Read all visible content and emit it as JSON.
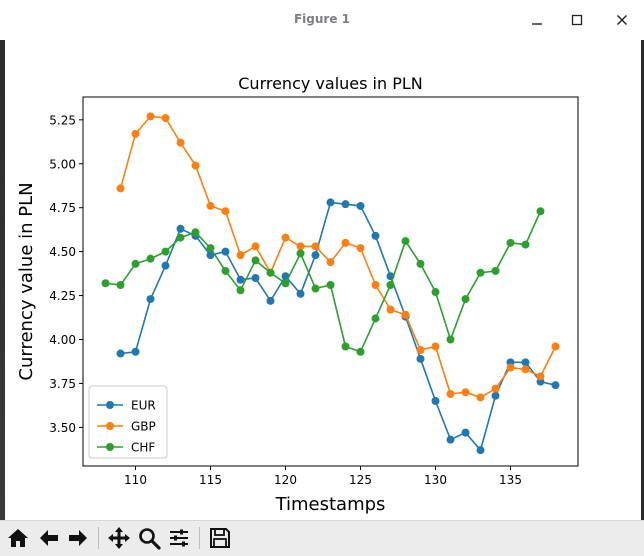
{
  "window": {
    "title": "Figure 1"
  },
  "toolbar": {
    "buttons": [
      "home-icon",
      "back-arrow-icon",
      "forward-arrow-icon",
      "pan-icon",
      "zoom-icon",
      "configure-subplots-icon",
      "save-icon"
    ]
  },
  "chart_data": {
    "type": "line",
    "title": "Currency values in PLN",
    "xlabel": "Timestamps",
    "ylabel": "Currency value in PLN",
    "xlim": [
      106.5,
      139.5
    ],
    "ylim": [
      3.28,
      5.38
    ],
    "xticks": [
      110,
      115,
      120,
      125,
      130,
      135
    ],
    "yticks": [
      3.5,
      3.75,
      4.0,
      4.25,
      4.5,
      4.75,
      5.0,
      5.25
    ],
    "xtick_labels": [
      "110",
      "115",
      "120",
      "125",
      "130",
      "135"
    ],
    "ytick_labels": [
      "3.50",
      "3.75",
      "4.00",
      "4.25",
      "4.50",
      "4.75",
      "5.00",
      "5.25"
    ],
    "grid": false,
    "legend_position": "lower-left",
    "series": [
      {
        "name": "EUR",
        "color": "#1f77b4",
        "x": [
          109,
          110,
          111,
          112,
          113,
          114,
          115,
          116,
          117,
          118,
          119,
          120,
          121,
          122,
          123,
          124,
          125,
          126,
          127,
          128,
          129,
          130,
          131,
          132,
          133,
          134,
          135,
          136,
          137,
          138
        ],
        "y": [
          3.92,
          3.93,
          4.23,
          4.42,
          4.63,
          4.59,
          4.48,
          4.5,
          4.34,
          4.35,
          4.22,
          4.36,
          4.26,
          4.48,
          4.78,
          4.77,
          4.76,
          4.59,
          4.36,
          4.13,
          3.89,
          3.65,
          3.43,
          3.47,
          3.37,
          3.68,
          3.87,
          3.87,
          3.76,
          3.74
        ]
      },
      {
        "name": "GBP",
        "color": "#ff7f0e",
        "x": [
          109,
          110,
          111,
          112,
          113,
          114,
          115,
          116,
          117,
          118,
          119,
          120,
          121,
          122,
          123,
          124,
          125,
          126,
          127,
          128,
          129,
          130,
          131,
          132,
          133,
          134,
          135,
          136,
          137,
          138
        ],
        "y": [
          4.86,
          5.17,
          5.27,
          5.26,
          5.12,
          4.99,
          4.76,
          4.73,
          4.48,
          4.53,
          4.38,
          4.58,
          4.53,
          4.53,
          4.44,
          4.55,
          4.52,
          4.31,
          4.17,
          4.14,
          3.94,
          3.96,
          3.69,
          3.7,
          3.67,
          3.72,
          3.84,
          3.83,
          3.79,
          3.96
        ]
      },
      {
        "name": "CHF",
        "color": "#2ca02c",
        "x": [
          108,
          109,
          110,
          111,
          112,
          113,
          114,
          115,
          116,
          117,
          118,
          119,
          120,
          121,
          122,
          123,
          124,
          125,
          126,
          127,
          128,
          129,
          130,
          131,
          132,
          133,
          134,
          135,
          136,
          137
        ],
        "y": [
          4.32,
          4.31,
          4.43,
          4.46,
          4.5,
          4.58,
          4.61,
          4.52,
          4.39,
          4.28,
          4.45,
          4.38,
          4.32,
          4.49,
          4.29,
          4.31,
          3.96,
          3.93,
          4.12,
          4.31,
          4.56,
          4.43,
          4.27,
          4.0,
          4.23,
          4.38,
          4.39,
          4.55,
          4.54,
          4.73
        ]
      }
    ]
  }
}
